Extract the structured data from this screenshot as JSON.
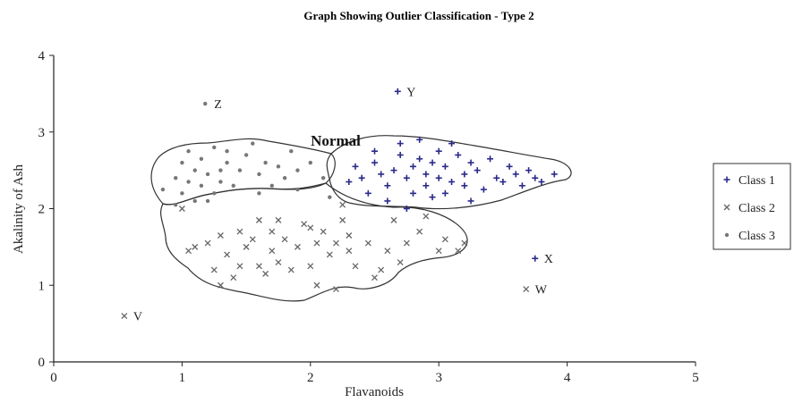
{
  "chart_data": {
    "type": "scatter",
    "title": "Graph Showing Outlier Classification - Type 2",
    "xlabel": "Flavanoids",
    "ylabel": "Akalinity of Ash",
    "xlim": [
      0,
      5
    ],
    "ylim": [
      0,
      4
    ],
    "xticks": [
      "0",
      "1",
      "2",
      "3",
      "4",
      "5"
    ],
    "yticks": [
      "0",
      "1",
      "2",
      "3",
      "4"
    ],
    "grid": false,
    "legend_position": "right",
    "region_label": "Normal",
    "series": [
      {
        "name": "Class 1",
        "marker": "plus",
        "color": "#2a2a8a",
        "points": [
          [
            2.3,
            2.35
          ],
          [
            2.35,
            2.55
          ],
          [
            2.4,
            2.4
          ],
          [
            2.45,
            2.2
          ],
          [
            2.5,
            2.6
          ],
          [
            2.55,
            2.45
          ],
          [
            2.6,
            2.3
          ],
          [
            2.65,
            2.5
          ],
          [
            2.7,
            2.7
          ],
          [
            2.7,
            2.85
          ],
          [
            2.75,
            2.4
          ],
          [
            2.8,
            2.55
          ],
          [
            2.8,
            2.2
          ],
          [
            2.85,
            2.65
          ],
          [
            2.9,
            2.45
          ],
          [
            2.9,
            2.3
          ],
          [
            2.95,
            2.6
          ],
          [
            3.0,
            2.4
          ],
          [
            3.0,
            2.75
          ],
          [
            3.05,
            2.2
          ],
          [
            3.05,
            2.55
          ],
          [
            3.1,
            2.35
          ],
          [
            3.15,
            2.7
          ],
          [
            3.2,
            2.45
          ],
          [
            3.2,
            2.3
          ],
          [
            3.25,
            2.6
          ],
          [
            3.3,
            2.5
          ],
          [
            3.35,
            2.25
          ],
          [
            3.4,
            2.65
          ],
          [
            3.45,
            2.4
          ],
          [
            3.5,
            2.35
          ],
          [
            3.55,
            2.55
          ],
          [
            3.6,
            2.45
          ],
          [
            3.65,
            2.3
          ],
          [
            3.7,
            2.5
          ],
          [
            3.75,
            2.4
          ],
          [
            3.8,
            2.35
          ],
          [
            3.9,
            2.45
          ],
          [
            2.6,
            2.1
          ],
          [
            2.95,
            2.15
          ],
          [
            3.25,
            2.1
          ],
          [
            2.75,
            2.0
          ],
          [
            2.5,
            2.75
          ],
          [
            3.1,
            2.85
          ],
          [
            2.85,
            2.9
          ]
        ]
      },
      {
        "name": "Class 2",
        "marker": "cross",
        "color": "#666666",
        "points": [
          [
            1.0,
            2.0
          ],
          [
            1.05,
            1.45
          ],
          [
            1.1,
            1.5
          ],
          [
            1.2,
            1.55
          ],
          [
            1.25,
            1.2
          ],
          [
            1.3,
            1.0
          ],
          [
            1.3,
            1.65
          ],
          [
            1.35,
            1.4
          ],
          [
            1.4,
            1.1
          ],
          [
            1.45,
            1.25
          ],
          [
            1.5,
            1.5
          ],
          [
            1.55,
            1.6
          ],
          [
            1.6,
            1.25
          ],
          [
            1.6,
            1.85
          ],
          [
            1.65,
            1.15
          ],
          [
            1.7,
            1.45
          ],
          [
            1.7,
            1.7
          ],
          [
            1.75,
            1.3
          ],
          [
            1.8,
            1.6
          ],
          [
            1.85,
            1.2
          ],
          [
            1.9,
            1.5
          ],
          [
            1.95,
            1.8
          ],
          [
            2.0,
            1.25
          ],
          [
            2.05,
            1.55
          ],
          [
            2.05,
            1.0
          ],
          [
            2.1,
            1.7
          ],
          [
            2.15,
            1.4
          ],
          [
            2.2,
            1.55
          ],
          [
            2.2,
            0.95
          ],
          [
            2.25,
            1.85
          ],
          [
            2.3,
            1.45
          ],
          [
            2.3,
            1.65
          ],
          [
            2.35,
            1.25
          ],
          [
            2.45,
            1.55
          ],
          [
            2.55,
            1.2
          ],
          [
            2.6,
            1.45
          ],
          [
            2.65,
            1.85
          ],
          [
            2.7,
            1.3
          ],
          [
            2.75,
            1.55
          ],
          [
            2.85,
            1.7
          ],
          [
            2.9,
            1.9
          ],
          [
            3.0,
            1.45
          ],
          [
            3.05,
            1.6
          ],
          [
            3.15,
            1.45
          ],
          [
            3.2,
            1.55
          ],
          [
            1.75,
            1.85
          ],
          [
            2.0,
            1.75
          ],
          [
            2.25,
            2.05
          ],
          [
            1.45,
            1.7
          ],
          [
            2.5,
            1.1
          ]
        ]
      },
      {
        "name": "Class 3",
        "marker": "dot",
        "color": "#777777",
        "points": [
          [
            0.85,
            2.25
          ],
          [
            0.95,
            2.4
          ],
          [
            1.0,
            2.6
          ],
          [
            1.0,
            2.2
          ],
          [
            1.05,
            2.35
          ],
          [
            1.05,
            2.75
          ],
          [
            1.1,
            2.5
          ],
          [
            1.1,
            2.1
          ],
          [
            1.15,
            2.3
          ],
          [
            1.15,
            2.65
          ],
          [
            1.2,
            2.45
          ],
          [
            1.25,
            2.2
          ],
          [
            1.25,
            2.8
          ],
          [
            1.3,
            2.5
          ],
          [
            1.3,
            2.35
          ],
          [
            1.35,
            2.6
          ],
          [
            1.4,
            2.3
          ],
          [
            1.45,
            2.5
          ],
          [
            1.5,
            2.7
          ],
          [
            1.55,
            2.85
          ],
          [
            1.6,
            2.45
          ],
          [
            1.65,
            2.6
          ],
          [
            1.7,
            2.3
          ],
          [
            1.75,
            2.55
          ],
          [
            1.8,
            2.4
          ],
          [
            1.85,
            2.75
          ],
          [
            1.9,
            2.5
          ],
          [
            1.9,
            2.25
          ],
          [
            2.0,
            2.6
          ],
          [
            2.1,
            2.4
          ],
          [
            2.15,
            2.15
          ],
          [
            1.2,
            2.1
          ],
          [
            0.95,
            2.05
          ],
          [
            1.35,
            2.75
          ],
          [
            1.6,
            2.2
          ]
        ]
      }
    ],
    "outliers": [
      {
        "label": "V",
        "x": 0.55,
        "y": 0.6,
        "class": "Class 2"
      },
      {
        "label": "Z",
        "x": 1.18,
        "y": 3.37,
        "class": "Class 3"
      },
      {
        "label": "Y",
        "x": 2.68,
        "y": 3.53,
        "class": "Class 1"
      },
      {
        "label": "X",
        "x": 3.75,
        "y": 1.35,
        "class": "Class 1"
      },
      {
        "label": "W",
        "x": 3.68,
        "y": 0.95,
        "class": "Class 2"
      }
    ]
  }
}
